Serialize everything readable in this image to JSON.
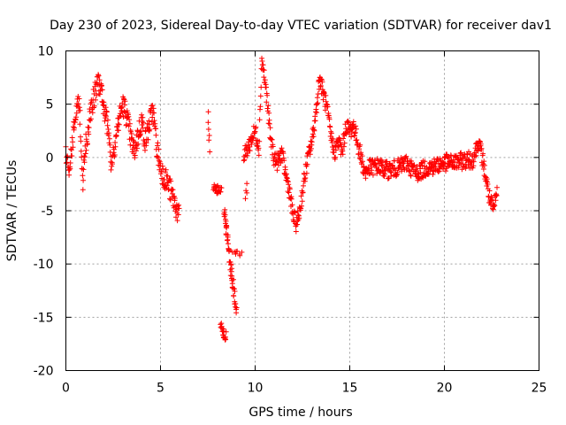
{
  "chart_data": {
    "type": "scatter",
    "title": "Day 230 of 2023, Sidereal Day-to-day VTEC variation (SDTVAR) for receiver dav1",
    "xlabel": "GPS time / hours",
    "ylabel": "SDTVAR / TECUs",
    "xlim": [
      0,
      25
    ],
    "ylim": [
      -20,
      10
    ],
    "xticks": [
      0,
      5,
      10,
      15,
      20,
      25
    ],
    "yticks": [
      -20,
      -15,
      -10,
      -5,
      0,
      5,
      10
    ],
    "xtick_labels": [
      "0",
      "5",
      "10",
      "15",
      "20",
      "25"
    ],
    "ytick_labels": [
      "-20",
      "-15",
      "-10",
      "-5",
      "0",
      "5",
      "10"
    ],
    "grid": true,
    "marker": "+",
    "marker_color": "#ff0000",
    "series": [
      {
        "name": "SDTVAR",
        "trend": [
          [
            0.0,
            0.5
          ],
          [
            0.15,
            -1.0
          ],
          [
            0.3,
            1.0
          ],
          [
            0.5,
            3.5
          ],
          [
            0.7,
            5.5
          ],
          [
            0.9,
            -2.5
          ],
          [
            1.0,
            0.5
          ],
          [
            1.2,
            3.0
          ],
          [
            1.4,
            5.0
          ],
          [
            1.6,
            6.5
          ],
          [
            1.8,
            7.0
          ],
          [
            2.0,
            5.0
          ],
          [
            2.2,
            3.0
          ],
          [
            2.4,
            -0.5
          ],
          [
            2.6,
            1.5
          ],
          [
            2.8,
            3.5
          ],
          [
            3.0,
            5.0
          ],
          [
            3.2,
            4.0
          ],
          [
            3.4,
            2.0
          ],
          [
            3.6,
            0.5
          ],
          [
            3.8,
            2.0
          ],
          [
            4.0,
            3.5
          ],
          [
            4.2,
            1.5
          ],
          [
            4.4,
            3.0
          ],
          [
            4.6,
            4.5
          ],
          [
            4.8,
            1.0
          ],
          [
            5.0,
            -1.0
          ],
          [
            5.2,
            -1.8
          ],
          [
            5.4,
            -2.5
          ],
          [
            5.6,
            -3.5
          ],
          [
            5.8,
            -4.5
          ],
          [
            6.0,
            -5.8
          ]
        ],
        "segments": [
          {
            "x": [
              7.5,
              7.6
            ],
            "y": [
              4.3,
              0.5
            ],
            "n": 6
          },
          {
            "x": [
              7.8,
              8.2
            ],
            "y": [
              -3.0,
              -3.2
            ],
            "n": 22
          },
          {
            "x": [
              8.2,
              8.45
            ],
            "y": [
              -15.8,
              -16.8
            ],
            "n": 20
          },
          {
            "x": [
              8.35,
              9.0
            ],
            "y": [
              -5.0,
              -14.5
            ],
            "n": 55
          },
          {
            "x": [
              8.8,
              9.3
            ],
            "y": [
              -8.6,
              -9.0
            ],
            "n": 8
          },
          {
            "x": [
              9.5,
              9.6
            ],
            "y": [
              -3.8,
              -2.7
            ],
            "n": 4
          }
        ],
        "trend2": [
          [
            9.4,
            0.0
          ],
          [
            10.0,
            2.5
          ],
          [
            10.2,
            1.0
          ],
          [
            10.35,
            9.3
          ],
          [
            10.6,
            6.0
          ],
          [
            10.8,
            2.0
          ],
          [
            11.0,
            0.0
          ],
          [
            11.2,
            -0.5
          ],
          [
            11.4,
            0.5
          ],
          [
            11.6,
            -1.5
          ],
          [
            11.8,
            -3.0
          ],
          [
            12.0,
            -5.5
          ],
          [
            12.2,
            -6.3
          ],
          [
            12.4,
            -4.5
          ],
          [
            12.6,
            -2.0
          ],
          [
            12.8,
            0.0
          ],
          [
            13.0,
            1.5
          ],
          [
            13.2,
            4.0
          ],
          [
            13.4,
            7.5
          ],
          [
            13.6,
            6.0
          ],
          [
            13.8,
            4.5
          ],
          [
            14.0,
            2.0
          ],
          [
            14.2,
            0.5
          ],
          [
            14.4,
            1.5
          ],
          [
            14.6,
            0.5
          ],
          [
            14.8,
            3.0
          ],
          [
            15.0,
            2.5
          ],
          [
            15.2,
            3.0
          ],
          [
            15.4,
            1.5
          ],
          [
            15.6,
            0.0
          ],
          [
            15.8,
            -1.5
          ],
          [
            16.0,
            -1.0
          ],
          [
            16.5,
            -0.8
          ],
          [
            17.0,
            -1.2
          ],
          [
            17.5,
            -1.0
          ],
          [
            18.0,
            -0.5
          ],
          [
            18.5,
            -1.5
          ],
          [
            19.0,
            -1.0
          ],
          [
            19.5,
            -0.8
          ],
          [
            20.0,
            -0.5
          ],
          [
            20.5,
            -0.5
          ],
          [
            21.0,
            -0.3
          ],
          [
            21.5,
            -0.2
          ],
          [
            21.8,
            1.5
          ],
          [
            22.0,
            0.0
          ],
          [
            22.2,
            -2.0
          ],
          [
            22.4,
            -4.0
          ],
          [
            22.6,
            -5.0
          ],
          [
            22.8,
            -3.0
          ]
        ]
      }
    ]
  }
}
